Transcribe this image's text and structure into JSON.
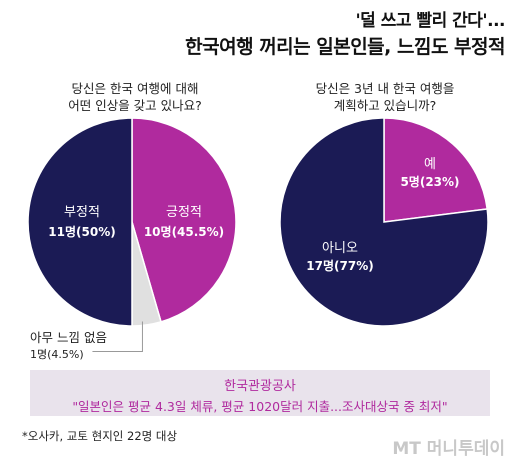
{
  "title_line1": "'덜 쓰고 빨리 간다'...",
  "title_line2": "한국여행 꺼리는 일본인들, 느낌도 부정적",
  "colors": {
    "navy": "#1b1b55",
    "magenta": "#b02a9e",
    "gray": "#e0e0e0",
    "source_bg": "#e9e3ec"
  },
  "chart_data": [
    {
      "type": "pie",
      "title": "당신은 한국 여행에 대해\n어떤 인상을 갖고 있나요?",
      "slices": [
        {
          "label": "부정적",
          "value_text": "11명(50%)",
          "count": 11,
          "percent": 50,
          "color": "#1b1b55"
        },
        {
          "label": "긍정적",
          "value_text": "10명(45.5%)",
          "count": 10,
          "percent": 45.5,
          "color": "#b02a9e"
        },
        {
          "label": "아무 느낌 없음",
          "value_text": "1명(4.5%)",
          "count": 1,
          "percent": 4.5,
          "color": "#e0e0e0"
        }
      ]
    },
    {
      "type": "pie",
      "title": "당신은 3년 내 한국 여행을\n계획하고 있습니까?",
      "slices": [
        {
          "label": "예",
          "value_text": "5명(23%)",
          "count": 5,
          "percent": 23,
          "color": "#b02a9e"
        },
        {
          "label": "아니오",
          "value_text": "17명(77%)",
          "count": 17,
          "percent": 77,
          "color": "#1b1b55"
        }
      ]
    }
  ],
  "source": {
    "org": "한국관광공사",
    "quote": "\"일본인은 평균 4.3일 체류, 평균 1020달러 지출...조사대상국 중 최저\""
  },
  "footnote": "*오사카, 교토 현지인 22명 대상",
  "logo": "MT 머니투데이"
}
